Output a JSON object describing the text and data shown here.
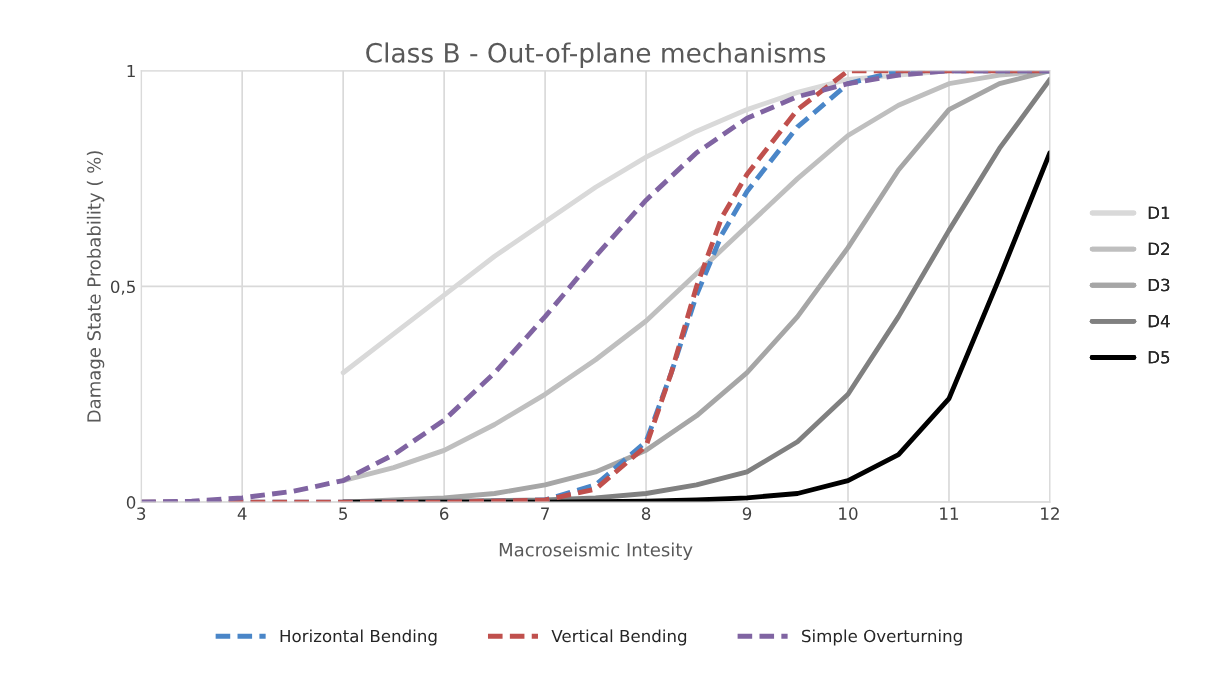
{
  "chart_data": {
    "type": "line",
    "title": "Class B - Out-of-plane mechanisms",
    "xlabel": "Macroseismic Intesity",
    "ylabel": "Damage State Probability ( %)",
    "xlim": [
      3,
      12
    ],
    "xticks": [
      3,
      4,
      5,
      6,
      7,
      8,
      9,
      10,
      11,
      12
    ],
    "ylim": [
      0,
      1
    ],
    "yticks": [
      0,
      {
        "value": 0.5,
        "label": "0,5"
      },
      1
    ],
    "grid": true,
    "legend": "right",
    "marker": "none",
    "series": [
      {
        "name": "D1",
        "color": "#d9d9d9",
        "line_style": "solid",
        "x": [
          5,
          5.5,
          6,
          6.5,
          7,
          7.5,
          8,
          8.5,
          9,
          9.5,
          10,
          10.5,
          11,
          11.5,
          12
        ],
        "values": [
          0.3,
          0.39,
          0.48,
          0.57,
          0.65,
          0.73,
          0.8,
          0.86,
          0.91,
          0.95,
          0.98,
          0.99,
          1.0,
          1.0,
          1.0
        ]
      },
      {
        "name": "D2",
        "color": "#bfbfbf",
        "line_style": "solid",
        "x": [
          5,
          5.5,
          6,
          6.5,
          7,
          7.5,
          8,
          8.5,
          9,
          9.5,
          10,
          10.5,
          11,
          11.5,
          12
        ],
        "values": [
          0.05,
          0.08,
          0.12,
          0.18,
          0.25,
          0.33,
          0.42,
          0.53,
          0.64,
          0.75,
          0.85,
          0.92,
          0.97,
          0.99,
          1.0
        ]
      },
      {
        "name": "D3",
        "color": "#a6a6a6",
        "line_style": "solid",
        "x": [
          5,
          5.5,
          6,
          6.5,
          7,
          7.5,
          8,
          8.5,
          9,
          9.5,
          10,
          10.5,
          11,
          11.5,
          12
        ],
        "values": [
          0.0,
          0.005,
          0.01,
          0.02,
          0.04,
          0.07,
          0.12,
          0.2,
          0.3,
          0.43,
          0.59,
          0.77,
          0.91,
          0.97,
          1.0
        ]
      },
      {
        "name": "D4",
        "color": "#808080",
        "line_style": "solid",
        "x": [
          5,
          6,
          7,
          7.5,
          8,
          8.5,
          9,
          9.5,
          10,
          10.5,
          11,
          11.5,
          12
        ],
        "values": [
          0.0,
          0.002,
          0.005,
          0.01,
          0.02,
          0.04,
          0.07,
          0.14,
          0.25,
          0.43,
          0.63,
          0.82,
          0.98
        ]
      },
      {
        "name": "D5",
        "color": "#000000",
        "line_style": "solid",
        "x": [
          5,
          6,
          7,
          8,
          8.5,
          9,
          9.5,
          10,
          10.5,
          11,
          11.5,
          12
        ],
        "values": [
          0.0,
          0.0,
          0.0,
          0.002,
          0.005,
          0.01,
          0.02,
          0.05,
          0.11,
          0.24,
          0.52,
          0.81
        ]
      },
      {
        "name": "Horizontal Bending",
        "color": "#4a86c8",
        "line_style": "dashed",
        "x": [
          3,
          4,
          5,
          6,
          7,
          7.5,
          8,
          8.25,
          8.5,
          8.75,
          9,
          9.5,
          10,
          10.5,
          11,
          12
        ],
        "values": [
          0.0,
          0.0,
          0.0,
          0.0,
          0.005,
          0.04,
          0.14,
          0.3,
          0.48,
          0.62,
          0.72,
          0.87,
          0.97,
          1.0,
          1.0,
          1.0
        ]
      },
      {
        "name": "Vertical Bending",
        "color": "#c0504d",
        "line_style": "dashed",
        "x": [
          3,
          4,
          5,
          6,
          7,
          7.5,
          8,
          8.25,
          8.5,
          8.75,
          9,
          9.5,
          10,
          10.5,
          11,
          12
        ],
        "values": [
          0.0,
          0.0,
          0.0,
          0.0,
          0.005,
          0.03,
          0.13,
          0.3,
          0.5,
          0.66,
          0.76,
          0.91,
          1.0,
          1.0,
          1.0,
          1.0
        ]
      },
      {
        "name": "Simple Overturning",
        "color": "#8064a2",
        "line_style": "dashed",
        "x": [
          3,
          3.5,
          4,
          4.5,
          5,
          5.5,
          6,
          6.5,
          7,
          7.5,
          8,
          8.5,
          9,
          9.5,
          10,
          10.5,
          11,
          12
        ],
        "values": [
          0.0,
          0.002,
          0.01,
          0.025,
          0.05,
          0.11,
          0.19,
          0.3,
          0.43,
          0.57,
          0.7,
          0.81,
          0.89,
          0.94,
          0.97,
          0.99,
          1.0,
          1.0
        ]
      }
    ]
  }
}
